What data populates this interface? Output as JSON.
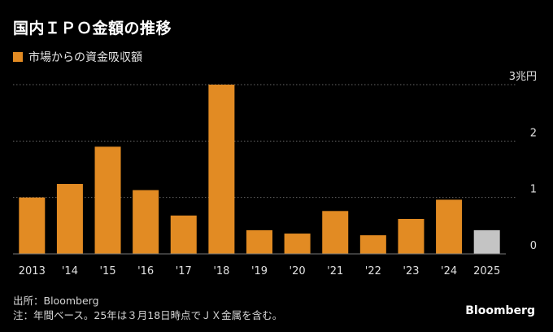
{
  "header": {
    "title": "国内ＩＰＯ金額の推移"
  },
  "legend": {
    "label": "市場からの資金吸収額",
    "color": "#e28b23"
  },
  "chart_data": {
    "type": "bar",
    "title": "国内ＩＰＯ金額の推移",
    "unit": "兆円",
    "categories": [
      "2013",
      "'14",
      "'15",
      "'16",
      "'17",
      "'18",
      "'19",
      "'20",
      "'21",
      "'22",
      "'23",
      "'24",
      "2025"
    ],
    "values": [
      1.0,
      1.24,
      1.9,
      1.13,
      0.68,
      3.0,
      0.42,
      0.36,
      0.76,
      0.33,
      0.62,
      0.96,
      0.42
    ],
    "highlight_last": true,
    "ylim": [
      0,
      3
    ],
    "yticks": [
      {
        "value": 0,
        "label": "0"
      },
      {
        "value": 1,
        "label": "1"
      },
      {
        "value": 2,
        "label": "2"
      },
      {
        "value": 3,
        "label": "3兆円"
      }
    ],
    "grid": true,
    "legend_position": "top-left",
    "bar_color": "#e28b23",
    "last_bar_color": "#c4c4c4"
  },
  "footer": {
    "source": "出所：Bloomberg",
    "note": "注：年間ベース。25年は３月18日時点でＪＸ金属を含む。",
    "logo": "Bloomberg"
  }
}
